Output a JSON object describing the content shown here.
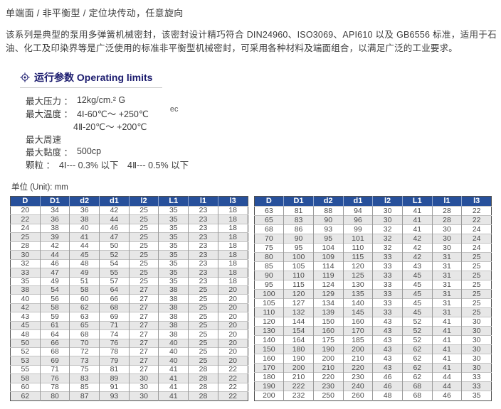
{
  "page": {
    "title_line": "单端面 / 非平衡型 / 定位块传动，任意旋向",
    "intro": "该系列是典型的泵用多弹簧机械密封，该密封设计精巧符合 DIN24960、ISO3069、API610 以及 GB6556 标准，适用于石油、化工及印染界等是广泛使用的标准非平衡型机械密封，可采用各种材料及端面组合，以满足广泛的工业要求。"
  },
  "operating": {
    "heading": "运行参数 Operating limits",
    "icon": "target-icon",
    "specs": [
      {
        "label": "最大压力 ：",
        "value": "12kg/cm.² G"
      },
      {
        "label": "最大温度 ：",
        "value": "4Ⅰ-60℃～ +250℃",
        "note": "ec"
      },
      {
        "label": "",
        "value": "4Ⅱ-20℃～ +200℃"
      },
      {
        "label": "最大周速",
        "value": ""
      },
      {
        "label": "最大黏度 ：",
        "value": "500cp"
      },
      {
        "label": "颗粒 ：",
        "value": "4Ⅰ--- 0.3% 以下　4Ⅱ--- 0.5% 以下"
      }
    ]
  },
  "unit_note": "单位 (Unit): mm",
  "colors": {
    "header_blue": "#27509b",
    "heading_navy": "#1b1b6e",
    "stripe": "#e7e7e7"
  },
  "tables": {
    "columns": [
      "D",
      "D1",
      "d2",
      "d1",
      "l2",
      "L1",
      "l1",
      "l3"
    ],
    "left_rows": [
      [
        20,
        34,
        36,
        42,
        25,
        35,
        23,
        18
      ],
      [
        22,
        36,
        38,
        44,
        25,
        35,
        23,
        18
      ],
      [
        24,
        38,
        40,
        46,
        25,
        35,
        23,
        18
      ],
      [
        25,
        39,
        41,
        47,
        25,
        35,
        23,
        18
      ],
      [
        28,
        42,
        44,
        50,
        25,
        35,
        23,
        18
      ],
      [
        30,
        44,
        45,
        52,
        25,
        35,
        23,
        18
      ],
      [
        32,
        46,
        48,
        54,
        25,
        35,
        23,
        18
      ],
      [
        33,
        47,
        49,
        55,
        25,
        35,
        23,
        18
      ],
      [
        35,
        49,
        51,
        57,
        25,
        35,
        23,
        18
      ],
      [
        38,
        54,
        58,
        64,
        27,
        38,
        25,
        20
      ],
      [
        40,
        56,
        60,
        66,
        27,
        38,
        25,
        20
      ],
      [
        42,
        58,
        62,
        68,
        27,
        38,
        25,
        20
      ],
      [
        43,
        59,
        63,
        69,
        27,
        38,
        25,
        20
      ],
      [
        45,
        61,
        65,
        71,
        27,
        38,
        25,
        20
      ],
      [
        48,
        64,
        68,
        74,
        27,
        38,
        25,
        20
      ],
      [
        50,
        66,
        70,
        76,
        27,
        40,
        25,
        20
      ],
      [
        52,
        68,
        72,
        78,
        27,
        40,
        25,
        20
      ],
      [
        53,
        69,
        73,
        79,
        27,
        40,
        25,
        20
      ],
      [
        55,
        71,
        75,
        81,
        27,
        41,
        28,
        22
      ],
      [
        58,
        76,
        83,
        89,
        30,
        41,
        28,
        22
      ],
      [
        60,
        78,
        85,
        91,
        30,
        41,
        28,
        22
      ],
      [
        62,
        80,
        87,
        93,
        30,
        41,
        28,
        22
      ]
    ],
    "right_rows": [
      [
        63,
        81,
        88,
        94,
        30,
        41,
        28,
        22
      ],
      [
        65,
        83,
        90,
        96,
        30,
        41,
        28,
        22
      ],
      [
        68,
        86,
        93,
        99,
        32,
        41,
        30,
        24
      ],
      [
        70,
        90,
        95,
        101,
        32,
        42,
        30,
        24
      ],
      [
        75,
        95,
        104,
        110,
        32,
        42,
        30,
        24
      ],
      [
        80,
        100,
        109,
        115,
        33,
        42,
        31,
        25
      ],
      [
        85,
        105,
        114,
        120,
        33,
        43,
        31,
        25
      ],
      [
        90,
        110,
        119,
        125,
        33,
        45,
        31,
        25
      ],
      [
        95,
        115,
        124,
        130,
        33,
        45,
        31,
        25
      ],
      [
        100,
        120,
        129,
        135,
        33,
        45,
        31,
        25
      ],
      [
        105,
        127,
        134,
        140,
        33,
        45,
        31,
        25
      ],
      [
        110,
        132,
        139,
        145,
        33,
        45,
        31,
        25
      ],
      [
        120,
        144,
        150,
        160,
        43,
        52,
        41,
        30
      ],
      [
        130,
        154,
        160,
        170,
        43,
        52,
        41,
        30
      ],
      [
        140,
        164,
        175,
        185,
        43,
        52,
        41,
        30
      ],
      [
        150,
        180,
        190,
        200,
        43,
        62,
        41,
        30
      ],
      [
        160,
        190,
        200,
        210,
        43,
        62,
        41,
        30
      ],
      [
        170,
        200,
        210,
        220,
        43,
        62,
        41,
        30
      ],
      [
        180,
        210,
        220,
        230,
        46,
        62,
        44,
        33
      ],
      [
        190,
        222,
        230,
        240,
        46,
        68,
        44,
        33
      ],
      [
        200,
        232,
        250,
        260,
        48,
        68,
        46,
        35
      ]
    ]
  }
}
